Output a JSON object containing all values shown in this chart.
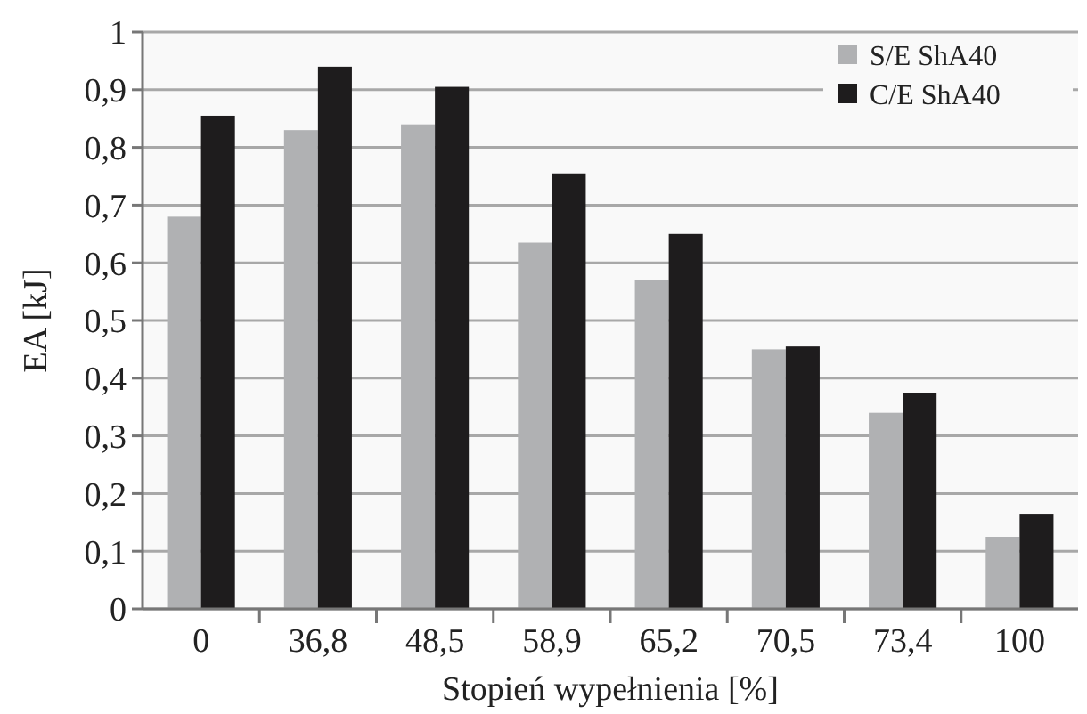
{
  "chart_data": {
    "type": "bar",
    "xlabel": "Stopień wypełnienia [%]",
    "ylabel": "EA [kJ]",
    "categories": [
      "0",
      "36,8",
      "48,5",
      "58,9",
      "65,2",
      "70,5",
      "73,4",
      "100"
    ],
    "series": [
      {
        "name": "S/E ShA40",
        "color": "#b0b1b3",
        "values": [
          0.68,
          0.83,
          0.84,
          0.635,
          0.57,
          0.45,
          0.34,
          0.125
        ]
      },
      {
        "name": "C/E ShA40",
        "color": "#1e1c1d",
        "values": [
          0.855,
          0.94,
          0.905,
          0.755,
          0.65,
          0.455,
          0.375,
          0.165
        ]
      }
    ],
    "ylim": [
      0,
      1
    ],
    "yticks": [
      0,
      {
        "value": 0.1,
        "label": "0,1"
      },
      {
        "value": 0.2,
        "label": "0,2"
      },
      {
        "value": 0.3,
        "label": "0,3"
      },
      {
        "value": 0.4,
        "label": "0,4"
      },
      {
        "value": 0.5,
        "label": "0,5"
      },
      {
        "value": 0.6,
        "label": "0,6"
      },
      {
        "value": 0.7,
        "label": "0,7"
      },
      {
        "value": 0.8,
        "label": "0,8"
      },
      {
        "value": 0.9,
        "label": "0,9"
      },
      1
    ],
    "grid": "y",
    "legend": "top right"
  }
}
